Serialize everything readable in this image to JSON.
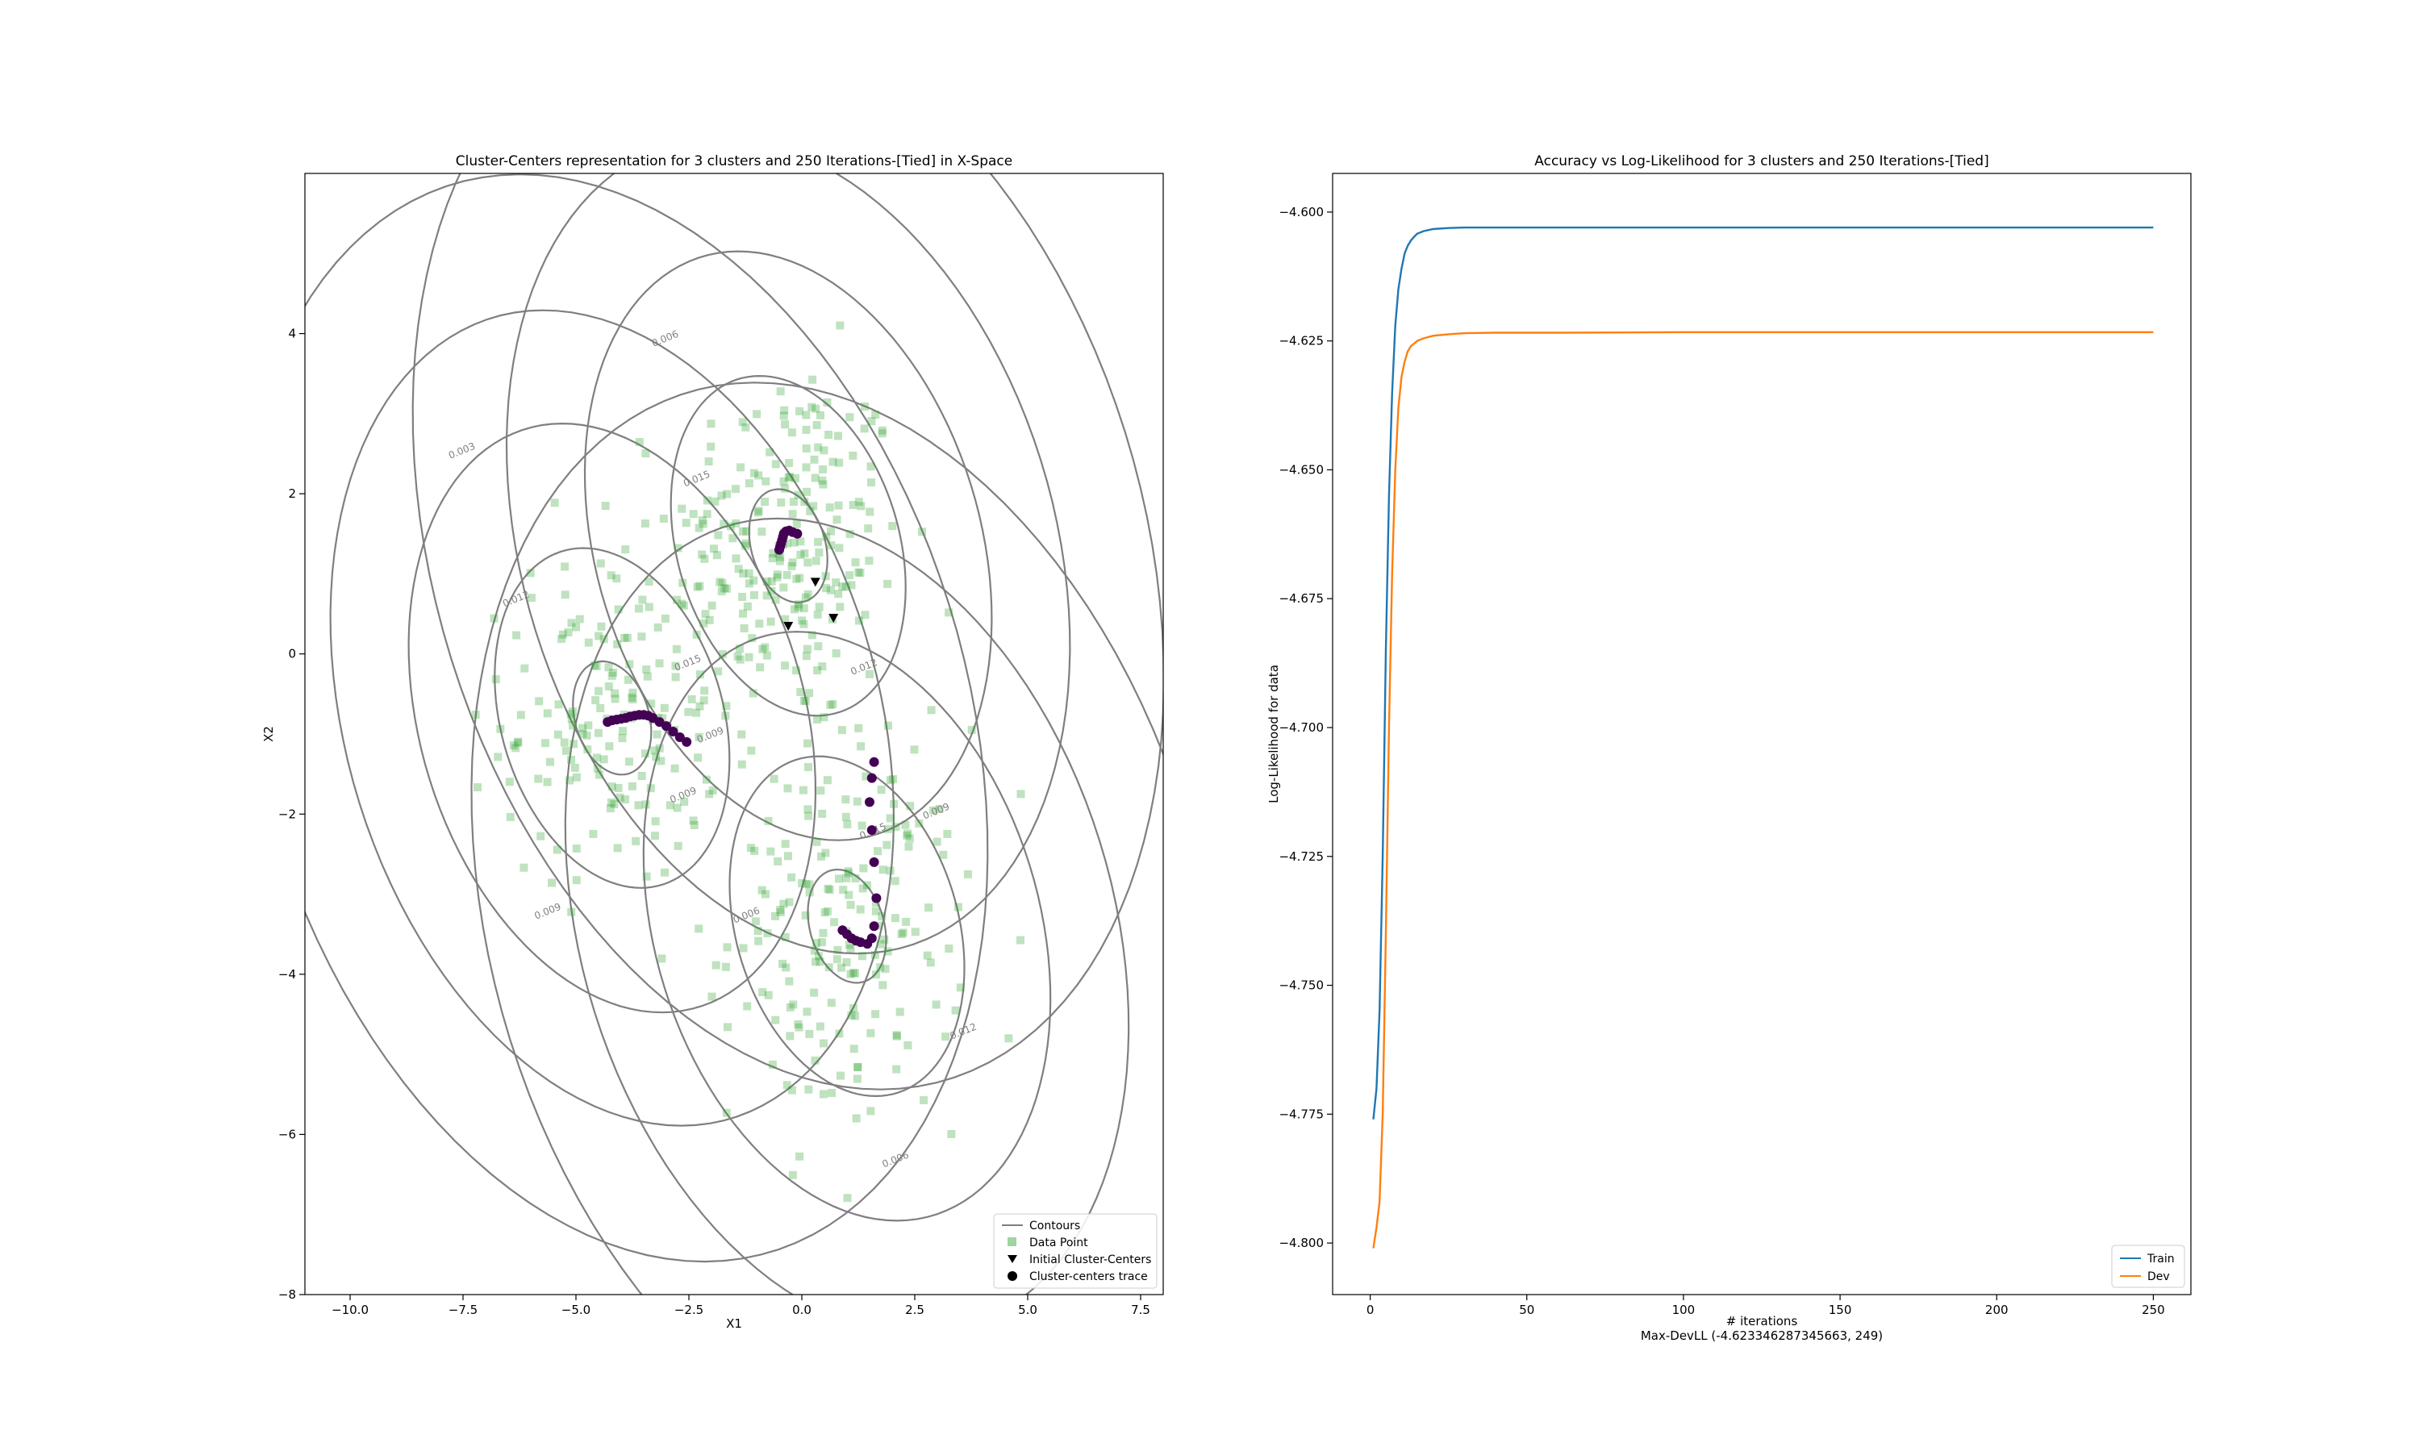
{
  "colors": {
    "data_point": "#2ca02c",
    "contour": "#7f7f7f",
    "trace": "#440154",
    "initial": "#000000",
    "train": "#1f77b4",
    "dev": "#ff7f0e"
  },
  "chart_data": [
    {
      "type": "scatter",
      "title": "Cluster-Centers representation for 3 clusters and 250 Iterations-[Tied] in X-Space",
      "xlabel": "X1",
      "ylabel": "X2",
      "xlim": [
        -11,
        8
      ],
      "ylim": [
        -8,
        6
      ],
      "xticks": [
        "−10.0",
        "−7.5",
        "−5.0",
        "−2.5",
        "0.0",
        "2.5",
        "5.0",
        "7.5"
      ],
      "xtick_values": [
        -10,
        -7.5,
        -5,
        -2.5,
        0,
        2.5,
        5,
        7.5
      ],
      "yticks": [
        "−8",
        "−6",
        "−4",
        "−2",
        "0",
        "2",
        "4"
      ],
      "ytick_values": [
        -8,
        -6,
        -4,
        -2,
        0,
        2,
        4
      ],
      "legend_position": "lower-right",
      "legend": [
        "Contours",
        "Data Point",
        "Initial Cluster-Centers",
        "Cluster-centers trace"
      ],
      "clusters": [
        {
          "mean": [
            -0.3,
            1.35
          ],
          "spread": [
            1.6,
            1.2
          ],
          "count": 230
        },
        {
          "mean": [
            -4.2,
            -0.8
          ],
          "spread": [
            1.5,
            1.1
          ],
          "count": 170
        },
        {
          "mean": [
            1.0,
            -3.4
          ],
          "spread": [
            1.6,
            1.3
          ],
          "count": 200
        }
      ],
      "covariance": [
        [
          3.0,
          -0.6
        ],
        [
          -0.6,
          2.0
        ]
      ],
      "contour_scales": [
        0.5,
        1.5,
        2.6,
        3.6,
        4.8
      ],
      "contour_labels": [
        {
          "text": "0.006",
          "x": -3.0,
          "y": 3.9
        },
        {
          "text": "0.003",
          "x": -7.5,
          "y": 2.5
        },
        {
          "text": "0.015",
          "x": -2.3,
          "y": 2.15
        },
        {
          "text": "0.012",
          "x": -6.3,
          "y": 0.65
        },
        {
          "text": "0.015",
          "x": -2.5,
          "y": -0.15
        },
        {
          "text": "0.012",
          "x": 1.4,
          "y": -0.2
        },
        {
          "text": "0.009",
          "x": -2.0,
          "y": -1.05
        },
        {
          "text": "0.009",
          "x": -2.6,
          "y": -1.8
        },
        {
          "text": "0.009",
          "x": 3.0,
          "y": -2.0
        },
        {
          "text": "0.015",
          "x": 1.6,
          "y": -2.25
        },
        {
          "text": "0.009",
          "x": -5.6,
          "y": -3.25
        },
        {
          "text": "0.006",
          "x": -1.2,
          "y": -3.3
        },
        {
          "text": "0.012",
          "x": 3.6,
          "y": -4.75
        },
        {
          "text": "0.006",
          "x": 2.1,
          "y": -6.35
        }
      ],
      "initial_centers": [
        [
          0.3,
          0.9
        ],
        [
          -0.3,
          0.35
        ],
        [
          0.7,
          0.45
        ]
      ],
      "traces": [
        [
          [
            -0.5,
            1.3
          ],
          [
            -0.48,
            1.34
          ],
          [
            -0.46,
            1.38
          ],
          [
            -0.44,
            1.42
          ],
          [
            -0.42,
            1.46
          ],
          [
            -0.4,
            1.5
          ],
          [
            -0.35,
            1.53
          ],
          [
            -0.28,
            1.54
          ],
          [
            -0.2,
            1.52
          ],
          [
            -0.1,
            1.5
          ]
        ],
        [
          [
            -4.3,
            -0.85
          ],
          [
            -4.2,
            -0.83
          ],
          [
            -4.1,
            -0.82
          ],
          [
            -4.0,
            -0.81
          ],
          [
            -3.9,
            -0.8
          ],
          [
            -3.8,
            -0.78
          ],
          [
            -3.7,
            -0.77
          ],
          [
            -3.6,
            -0.76
          ],
          [
            -3.5,
            -0.76
          ],
          [
            -3.4,
            -0.77
          ],
          [
            -3.3,
            -0.8
          ],
          [
            -3.15,
            -0.85
          ],
          [
            -3.0,
            -0.9
          ],
          [
            -2.85,
            -0.97
          ],
          [
            -2.7,
            -1.04
          ],
          [
            -2.55,
            -1.1
          ]
        ],
        [
          [
            0.9,
            -3.45
          ],
          [
            1.0,
            -3.5
          ],
          [
            1.1,
            -3.55
          ],
          [
            1.2,
            -3.58
          ],
          [
            1.3,
            -3.6
          ],
          [
            1.45,
            -3.62
          ],
          [
            1.55,
            -3.55
          ],
          [
            1.6,
            -3.4
          ],
          [
            1.65,
            -3.05
          ],
          [
            1.6,
            -2.6
          ],
          [
            1.55,
            -2.2
          ],
          [
            1.5,
            -1.85
          ],
          [
            1.55,
            -1.55
          ],
          [
            1.6,
            -1.35
          ]
        ]
      ]
    },
    {
      "type": "line",
      "title": "Accuracy vs Log-Likelihood for 3 clusters and 250 Iterations-[Tied]",
      "xlabel": "# iterations",
      "xlabel_sub": "Max-DevLL (-4.623346287345663, 249)",
      "ylabel": "Log-Likelihood for data",
      "xlim": [
        -12,
        262
      ],
      "ylim": [
        -4.81,
        -4.5925
      ],
      "xticks": [
        "0",
        "50",
        "100",
        "150",
        "200",
        "250"
      ],
      "xtick_values": [
        0,
        50,
        100,
        150,
        200,
        250
      ],
      "yticks": [
        "−4.800",
        "−4.775",
        "−4.750",
        "−4.725",
        "−4.700",
        "−4.675",
        "−4.650",
        "−4.625",
        "−4.600"
      ],
      "ytick_values": [
        -4.8,
        -4.775,
        -4.75,
        -4.725,
        -4.7,
        -4.675,
        -4.65,
        -4.625,
        -4.6
      ],
      "legend_position": "lower-right",
      "series": [
        {
          "name": "Train",
          "x": [
            1,
            2,
            3,
            4,
            5,
            6,
            7,
            8,
            9,
            10,
            11,
            12,
            13,
            14,
            15,
            17,
            20,
            25,
            30,
            40,
            60,
            100,
            150,
            200,
            250
          ],
          "y": [
            -4.776,
            -4.77,
            -4.755,
            -4.725,
            -4.685,
            -4.655,
            -4.635,
            -4.622,
            -4.615,
            -4.611,
            -4.608,
            -4.6065,
            -4.6055,
            -4.6048,
            -4.6042,
            -4.6037,
            -4.6033,
            -4.6031,
            -4.603,
            -4.603,
            -4.603,
            -4.603,
            -4.603,
            -4.603,
            -4.603
          ]
        },
        {
          "name": "Dev",
          "x": [
            1,
            2,
            3,
            4,
            5,
            6,
            7,
            8,
            9,
            10,
            11,
            12,
            13,
            14,
            15,
            17,
            20,
            25,
            30,
            40,
            60,
            100,
            150,
            200,
            250
          ],
          "y": [
            -4.801,
            -4.797,
            -4.792,
            -4.775,
            -4.74,
            -4.7,
            -4.67,
            -4.65,
            -4.638,
            -4.632,
            -4.629,
            -4.627,
            -4.626,
            -4.6255,
            -4.625,
            -4.6245,
            -4.624,
            -4.6237,
            -4.6235,
            -4.6234,
            -4.6234,
            -4.6233,
            -4.6233,
            -4.6233,
            -4.6233
          ]
        }
      ]
    }
  ]
}
